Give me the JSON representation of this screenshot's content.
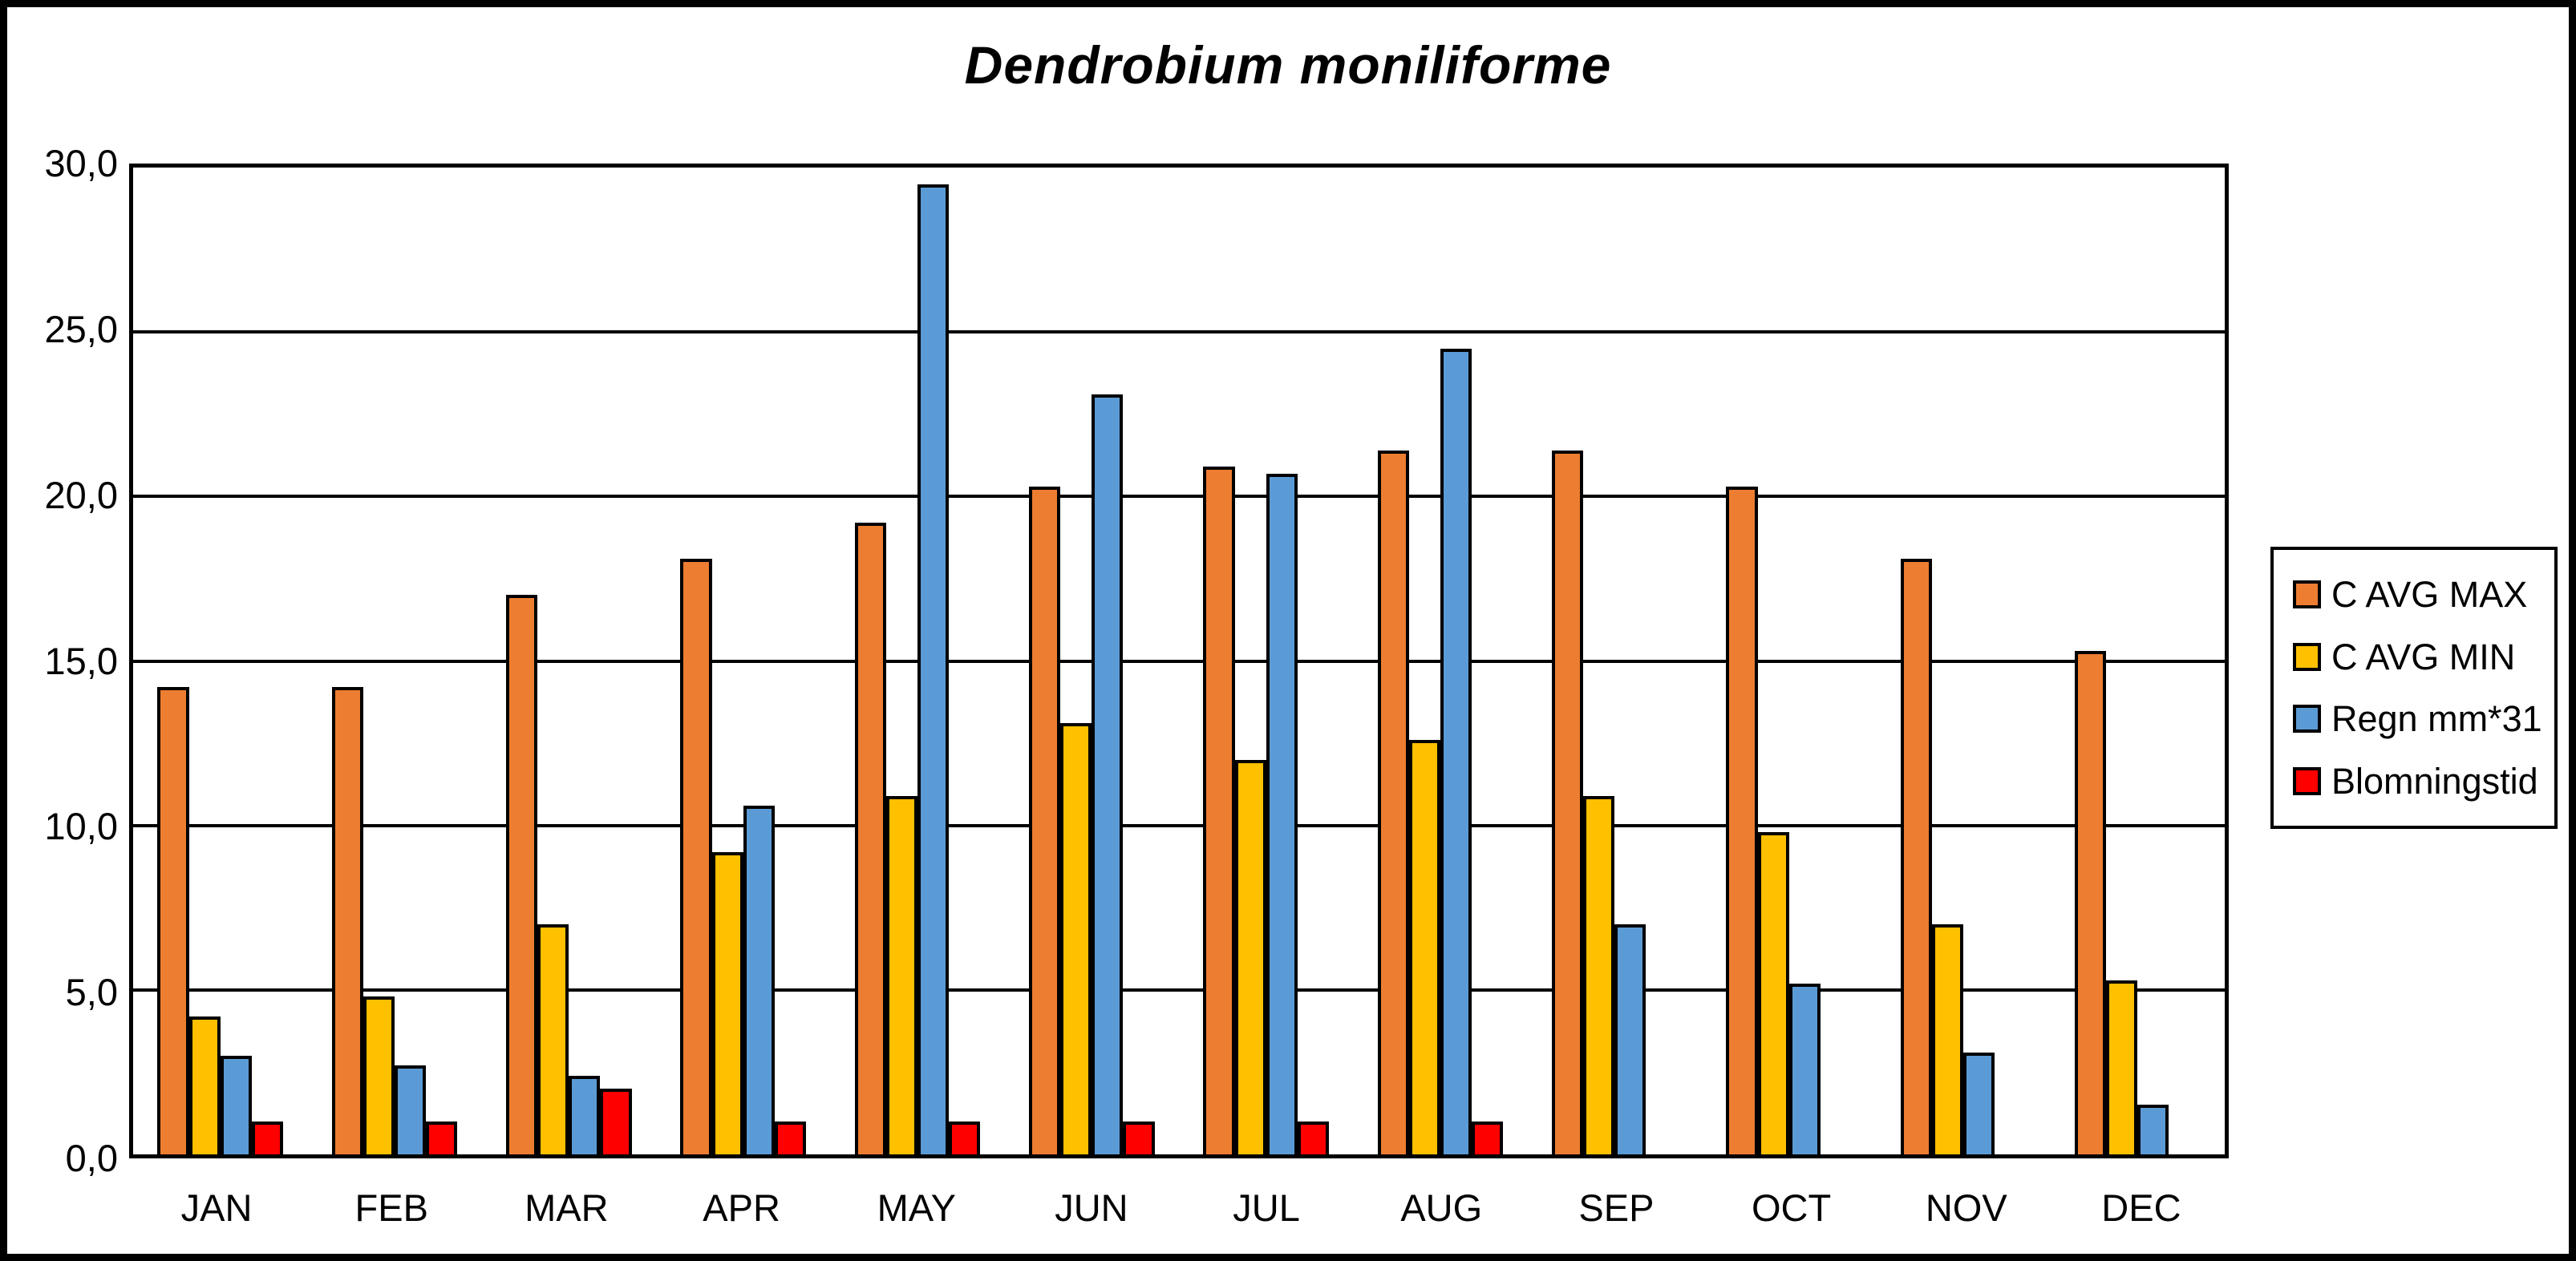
{
  "chart": {
    "background": "#FFFFFF",
    "frame_border_color": "#000000",
    "plot_border_color": "#000000",
    "gridline_color": "#000000"
  },
  "chart_data": {
    "type": "bar",
    "title": "Dendrobium moniliforme",
    "categories": [
      "JAN",
      "FEB",
      "MAR",
      "APR",
      "MAY",
      "JUN",
      "JUL",
      "AUG",
      "SEP",
      "OCT",
      "NOV",
      "DEC"
    ],
    "series": [
      {
        "name": "C AVG MAX",
        "color": "#ED7D31",
        "values": [
          14.2,
          14.2,
          17.0,
          18.1,
          19.2,
          20.3,
          20.9,
          21.4,
          21.4,
          20.3,
          18.1,
          15.3
        ]
      },
      {
        "name": "C AVG MIN",
        "color": "#FFC000",
        "values": [
          4.2,
          4.8,
          7.0,
          9.2,
          10.9,
          13.1,
          12.0,
          12.6,
          10.9,
          9.8,
          7.0,
          5.3
        ]
      },
      {
        "name": "Regn mm*31",
        "color": "#5B9BD5",
        "values": [
          3.0,
          2.7,
          2.4,
          10.6,
          29.5,
          23.1,
          20.7,
          24.5,
          7.0,
          5.2,
          3.1,
          1.5
        ]
      },
      {
        "name": "Blomningstid",
        "color": "#FF0000",
        "values": [
          1.0,
          1.0,
          2.0,
          1.0,
          1.0,
          1.0,
          1.0,
          1.0,
          0,
          0,
          0,
          0
        ]
      }
    ],
    "xlabel": "",
    "ylabel": "",
    "ylim": [
      0,
      30
    ],
    "ytick_step": 5,
    "ytick_labels_top_to_bottom": [
      "30,0",
      "25,0",
      "20,0",
      "15,0",
      "10,0",
      "5,0",
      "0,0"
    ],
    "grid": "horizontal",
    "legend_position": "right",
    "bar_outline_color": "#000000"
  }
}
